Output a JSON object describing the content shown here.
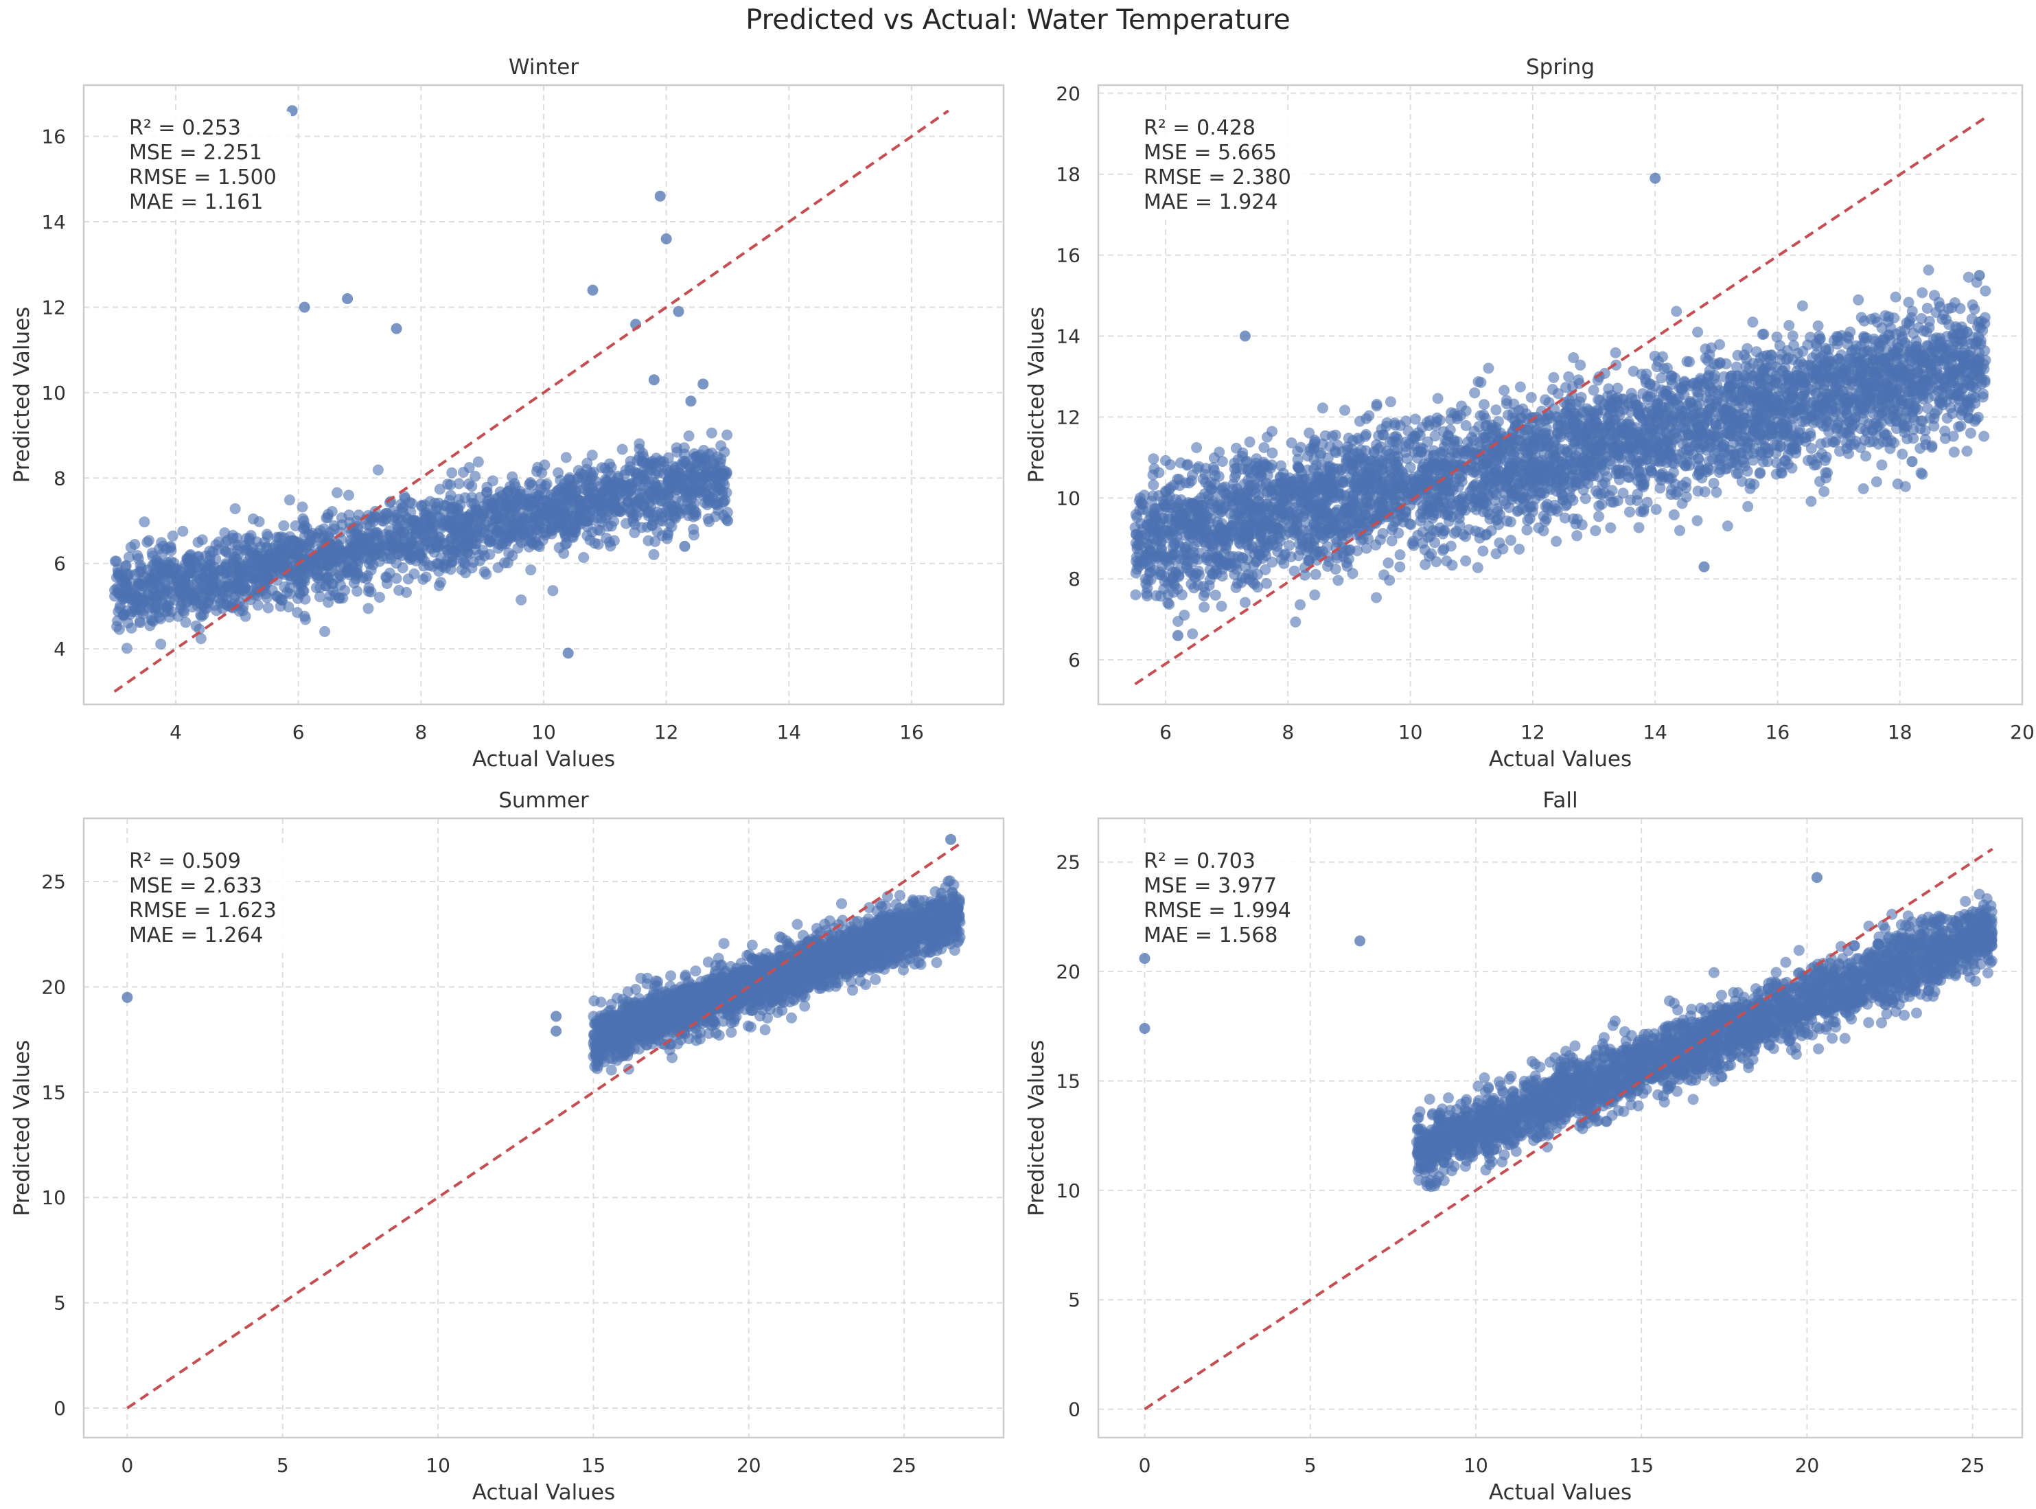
{
  "figure": {
    "title": "Predicted vs Actual: Water Temperature"
  },
  "colors": {
    "points": "#4C72B0",
    "reference_line": "#C44E52",
    "grid": "#DDDDDD",
    "frame": "#CCCCCC",
    "text": "#333333"
  },
  "chart_data": [
    {
      "type": "scatter",
      "title": "Winter",
      "xlabel": "Actual Values",
      "ylabel": "Predicted Values",
      "xlim": [
        2.5,
        17.5
      ],
      "ylim": [
        2.7,
        17.2
      ],
      "xticks": [
        4,
        6,
        8,
        10,
        12,
        14,
        16
      ],
      "yticks": [
        4,
        6,
        8,
        10,
        12,
        14,
        16
      ],
      "grid": true,
      "reference_line": {
        "from": [
          3,
          3
        ],
        "to": [
          16.6,
          16.6
        ],
        "style": "dashed"
      },
      "metrics": [
        "R² = 0.253",
        "MSE = 2.251",
        "RMSE = 1.500",
        "MAE = 1.161"
      ],
      "cloud": {
        "description_points": "dense cloud",
        "x_range": [
          3,
          13
        ],
        "trend": {
          "slope": 0.28,
          "intercept": 4.4
        },
        "spread": 0.75,
        "count": 2200
      },
      "outliers": [
        {
          "x": 5.9,
          "y": 16.6
        },
        {
          "x": 11.9,
          "y": 14.6
        },
        {
          "x": 12.0,
          "y": 13.6
        },
        {
          "x": 6.8,
          "y": 12.2
        },
        {
          "x": 7.6,
          "y": 11.5
        },
        {
          "x": 12.2,
          "y": 11.9
        },
        {
          "x": 10.8,
          "y": 12.4
        },
        {
          "x": 11.8,
          "y": 10.3
        },
        {
          "x": 12.4,
          "y": 9.8
        },
        {
          "x": 12.6,
          "y": 10.2
        },
        {
          "x": 10.4,
          "y": 3.9
        },
        {
          "x": 11.5,
          "y": 11.6
        },
        {
          "x": 6.1,
          "y": 12.0
        },
        {
          "x": 12.8,
          "y": 7.4
        },
        {
          "x": 12.5,
          "y": 8.5
        },
        {
          "x": 13.0,
          "y": 7.0
        },
        {
          "x": 12.3,
          "y": 6.4
        }
      ]
    },
    {
      "type": "scatter",
      "title": "Spring",
      "xlabel": "Actual Values",
      "ylabel": "Predicted Values",
      "xlim": [
        4.9,
        20.0
      ],
      "ylim": [
        4.9,
        20.2
      ],
      "xticks": [
        6,
        8,
        10,
        12,
        14,
        16,
        18,
        20
      ],
      "yticks": [
        6,
        8,
        10,
        12,
        14,
        16,
        18,
        20
      ],
      "grid": true,
      "reference_line": {
        "from": [
          5.5,
          5.4
        ],
        "to": [
          19.4,
          19.4
        ],
        "style": "dashed"
      },
      "metrics": [
        "R² = 0.428",
        "MSE = 5.665",
        "RMSE = 2.380",
        "MAE = 1.924"
      ],
      "cloud": {
        "description_points": "dense cloud",
        "x_range": [
          5.5,
          19.4
        ],
        "trend": {
          "slope": 0.32,
          "intercept": 7.1
        },
        "spread": 1.3,
        "count": 4200
      },
      "outliers": [
        {
          "x": 14.0,
          "y": 17.9
        },
        {
          "x": 6.2,
          "y": 6.6
        },
        {
          "x": 7.3,
          "y": 14.0
        },
        {
          "x": 19.3,
          "y": 15.5
        },
        {
          "x": 19.1,
          "y": 14.1
        },
        {
          "x": 14.8,
          "y": 8.3
        },
        {
          "x": 18.2,
          "y": 10.9
        }
      ]
    },
    {
      "type": "scatter",
      "title": "Summer",
      "xlabel": "Actual Values",
      "ylabel": "Predicted Values",
      "xlim": [
        -1.4,
        28.2
      ],
      "ylim": [
        -1.4,
        28.0
      ],
      "xticks": [
        0,
        5,
        10,
        15,
        20,
        25
      ],
      "yticks": [
        0,
        5,
        10,
        15,
        20,
        25
      ],
      "grid": true,
      "reference_line": {
        "from": [
          0,
          0
        ],
        "to": [
          26.9,
          26.9
        ],
        "style": "dashed"
      },
      "metrics": [
        "R² = 0.509",
        "MSE = 2.633",
        "RMSE = 1.623",
        "MAE = 1.264"
      ],
      "cloud": {
        "description_points": "dense cloud",
        "x_range": [
          15,
          26.8
        ],
        "trend": {
          "slope": 0.5,
          "intercept": 10.0
        },
        "spread": 1.05,
        "count": 2600
      },
      "outliers": [
        {
          "x": 0,
          "y": 19.5
        },
        {
          "x": 13.8,
          "y": 18.6
        },
        {
          "x": 13.8,
          "y": 17.9
        },
        {
          "x": 26.5,
          "y": 27.0
        }
      ]
    },
    {
      "type": "scatter",
      "title": "Fall",
      "xlabel": "Actual Values",
      "ylabel": "Predicted Values",
      "xlim": [
        -1.4,
        26.5
      ],
      "ylim": [
        -1.3,
        27.0
      ],
      "xticks": [
        0,
        5,
        10,
        15,
        20,
        25
      ],
      "yticks": [
        0,
        5,
        10,
        15,
        20,
        25
      ],
      "grid": true,
      "reference_line": {
        "from": [
          0,
          0
        ],
        "to": [
          25.6,
          25.6
        ],
        "style": "dashed"
      },
      "metrics": [
        "R² = 0.703",
        "MSE = 3.977",
        "RMSE = 1.994",
        "MAE = 1.568"
      ],
      "cloud": {
        "description_points": "dense cloud",
        "x_range": [
          8.2,
          25.6
        ],
        "trend": {
          "slope": 0.58,
          "intercept": 7.0
        },
        "spread": 1.25,
        "count": 3000
      },
      "outliers": [
        {
          "x": 0,
          "y": 20.6
        },
        {
          "x": 0,
          "y": 17.4
        },
        {
          "x": 6.5,
          "y": 21.4
        },
        {
          "x": 20.3,
          "y": 24.3
        }
      ]
    }
  ]
}
